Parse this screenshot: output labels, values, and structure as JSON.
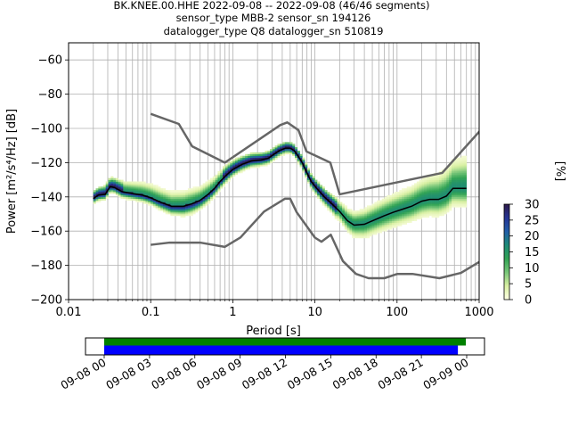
{
  "window": {
    "width": 640,
    "height": 480
  },
  "chart_data": {
    "type": "heatmap",
    "title_lines": [
      "BK.KNEE.00.HHE   2022-09-08 -- 2022-09-08  (46/46 segments)",
      "sensor_type MBB-2 sensor_sn 194126",
      "datalogger_type Q8 datalogger_sn 510819"
    ],
    "xlabel": "Period [s]",
    "ylabel": "Power [m²/s⁴/Hz] [dB]",
    "x_scale": "log",
    "xlim": [
      0.01,
      1000
    ],
    "ylim": [
      -200,
      -50
    ],
    "x_ticks": [
      {
        "value": 0.01,
        "label": "0.01"
      },
      {
        "value": 0.1,
        "label": "0.1"
      },
      {
        "value": 1,
        "label": "1"
      },
      {
        "value": 10,
        "label": "10"
      },
      {
        "value": 100,
        "label": "100"
      },
      {
        "value": 1000,
        "label": "1000"
      }
    ],
    "y_ticks": [
      {
        "value": -60,
        "label": "−60"
      },
      {
        "value": -80,
        "label": "−80"
      },
      {
        "value": -100,
        "label": "−100"
      },
      {
        "value": -120,
        "label": "−120"
      },
      {
        "value": -140,
        "label": "−140"
      },
      {
        "value": -160,
        "label": "−160"
      },
      {
        "value": -180,
        "label": "−180"
      },
      {
        "value": -200,
        "label": "−200"
      }
    ],
    "grid": true,
    "colorbar": {
      "label": "[%]",
      "range": [
        0,
        30
      ],
      "ticks": [
        {
          "value": 0,
          "label": "0"
        },
        {
          "value": 5,
          "label": "5"
        },
        {
          "value": 10,
          "label": "10"
        },
        {
          "value": 15,
          "label": "15"
        },
        {
          "value": 20,
          "label": "20"
        },
        {
          "value": 25,
          "label": "25"
        },
        {
          "value": 30,
          "label": "30"
        }
      ],
      "colors": [
        "#ffffe5",
        "#d9f0a3",
        "#78c679",
        "#31a354",
        "#1d8a77",
        "#225ea8",
        "#253494",
        "#2d1a4a"
      ]
    },
    "noise_models": [
      {
        "name": "NHNM",
        "color": "#666666",
        "points": [
          [
            0.1,
            -91.5
          ],
          [
            0.22,
            -97.4
          ],
          [
            0.32,
            -110.5
          ],
          [
            0.8,
            -120
          ],
          [
            3.8,
            -98
          ],
          [
            4.6,
            -96.5
          ],
          [
            6.3,
            -101
          ],
          [
            7.9,
            -113.5
          ],
          [
            15.4,
            -120
          ],
          [
            20,
            -138.5
          ],
          [
            354.8,
            -126
          ],
          [
            10000,
            -48.5
          ]
        ]
      },
      {
        "name": "NLNM",
        "color": "#666666",
        "points": [
          [
            0.1,
            -168
          ],
          [
            0.17,
            -166.7
          ],
          [
            0.4,
            -166.7
          ],
          [
            0.8,
            -169.2
          ],
          [
            1.24,
            -163.7
          ],
          [
            2.4,
            -148.6
          ],
          [
            4.3,
            -141.1
          ],
          [
            5,
            -141.1
          ],
          [
            6,
            -149
          ],
          [
            10,
            -163.8
          ],
          [
            12,
            -166.2
          ],
          [
            15.6,
            -162.1
          ],
          [
            21.9,
            -177.5
          ],
          [
            31.6,
            -185
          ],
          [
            45,
            -187.5
          ],
          [
            70,
            -187.5
          ],
          [
            101,
            -185
          ],
          [
            154,
            -185
          ],
          [
            328,
            -187.5
          ],
          [
            600,
            -184.4
          ],
          [
            1000,
            -178
          ]
        ]
      }
    ],
    "mean_psd": {
      "name": "mean",
      "points": [
        [
          0.02,
          -141
        ],
        [
          0.023,
          -139
        ],
        [
          0.028,
          -138.5
        ],
        [
          0.032,
          -134
        ],
        [
          0.036,
          -134.5
        ],
        [
          0.045,
          -137
        ],
        [
          0.06,
          -138
        ],
        [
          0.08,
          -139
        ],
        [
          0.1,
          -140.5
        ],
        [
          0.13,
          -143
        ],
        [
          0.18,
          -145.5
        ],
        [
          0.25,
          -145.5
        ],
        [
          0.32,
          -144
        ],
        [
          0.4,
          -142
        ],
        [
          0.5,
          -138.5
        ],
        [
          0.6,
          -135
        ],
        [
          0.7,
          -131
        ],
        [
          0.85,
          -127
        ],
        [
          1,
          -124
        ],
        [
          1.3,
          -121
        ],
        [
          1.7,
          -119
        ],
        [
          2.2,
          -118.5
        ],
        [
          2.7,
          -117.5
        ],
        [
          3.2,
          -115
        ],
        [
          3.7,
          -113
        ],
        [
          4.4,
          -111.5
        ],
        [
          5,
          -111.5
        ],
        [
          5.6,
          -113
        ],
        [
          6.3,
          -116.5
        ],
        [
          7,
          -120
        ],
        [
          8,
          -126
        ],
        [
          9,
          -131
        ],
        [
          10.5,
          -135
        ],
        [
          13,
          -140
        ],
        [
          16,
          -144
        ],
        [
          20,
          -148.5
        ],
        [
          25,
          -154
        ],
        [
          30,
          -156.5
        ],
        [
          40,
          -156
        ],
        [
          50,
          -154
        ],
        [
          70,
          -151
        ],
        [
          90,
          -149
        ],
        [
          120,
          -147
        ],
        [
          150,
          -145.5
        ],
        [
          200,
          -142.5
        ],
        [
          250,
          -141.5
        ],
        [
          320,
          -141.5
        ],
        [
          400,
          -139.5
        ],
        [
          480,
          -135
        ],
        [
          700,
          -135
        ]
      ]
    },
    "histogram_spread": {
      "lower_dB": [
        [
          0.02,
          3
        ],
        [
          0.1,
          4
        ],
        [
          0.3,
          6
        ],
        [
          1,
          4
        ],
        [
          5,
          3
        ],
        [
          15,
          5
        ],
        [
          40,
          9
        ],
        [
          150,
          10
        ],
        [
          700,
          12
        ]
      ],
      "upper_dB": [
        [
          0.02,
          4
        ],
        [
          0.1,
          8
        ],
        [
          0.3,
          9
        ],
        [
          1,
          5
        ],
        [
          5,
          3
        ],
        [
          15,
          5
        ],
        [
          40,
          9
        ],
        [
          150,
          12
        ],
        [
          700,
          20
        ]
      ]
    }
  },
  "coverage": {
    "x_tick_labels": [
      "09-08 00",
      "09-08 03",
      "09-08 06",
      "09-08 09",
      "09-08 12",
      "09-08 15",
      "09-08 18",
      "09-08 21",
      "09-09 00"
    ],
    "data_bar_color": "#008000",
    "gap_bar_color": "#0000ff",
    "data_fraction": 0.956,
    "gap_fraction": 0.934
  }
}
